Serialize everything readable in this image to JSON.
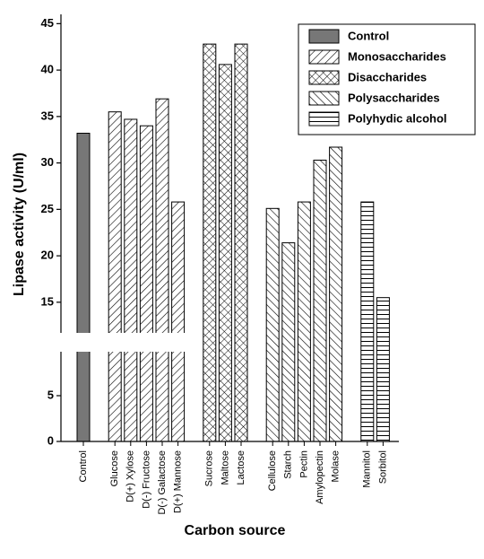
{
  "chart_data": {
    "type": "bar",
    "x_label": "Carbon source",
    "y_label": "Lipase activity (U/ml)",
    "categories": [
      "Control",
      null,
      "Glucose",
      "D(+) Xylose",
      "D(-) Fructose",
      "D(-) Galactose",
      "D(+) Mannose",
      null,
      "Sucrose",
      "Maltose",
      "Lactose",
      null,
      "Cellulose",
      "Starch",
      "Pectin",
      "Amylopectin",
      "Molase",
      null,
      "Mannitol",
      "Sorbitol"
    ],
    "series": [
      {
        "name": "Control",
        "color": "#777777",
        "pattern": "solid",
        "values": [
          33.2,
          null,
          null,
          null,
          null,
          null,
          null,
          null,
          null,
          null,
          null,
          null,
          null,
          null,
          null,
          null,
          null,
          null,
          null,
          null
        ]
      },
      {
        "name": "Monosaccharides",
        "color": "#000000",
        "pattern": "forward-diagonal",
        "values": [
          null,
          null,
          35.5,
          34.7,
          34.0,
          36.9,
          25.8,
          null,
          null,
          null,
          null,
          null,
          null,
          null,
          null,
          null,
          null,
          null,
          null,
          null
        ]
      },
      {
        "name": "Disaccharides",
        "color": "#000000",
        "pattern": "crosshatch",
        "values": [
          null,
          null,
          null,
          null,
          null,
          null,
          null,
          null,
          42.8,
          40.6,
          42.8,
          null,
          null,
          null,
          null,
          null,
          null,
          null,
          null,
          null
        ]
      },
      {
        "name": "Polysaccharides",
        "color": "#000000",
        "pattern": "backward-diagonal",
        "values": [
          null,
          null,
          null,
          null,
          null,
          null,
          null,
          null,
          null,
          null,
          null,
          null,
          25.1,
          21.4,
          25.8,
          30.3,
          31.7,
          null,
          null,
          null
        ]
      },
      {
        "name": "Polyhydic alcohol",
        "color": "#000000",
        "pattern": "horizontal",
        "values": [
          null,
          null,
          null,
          null,
          null,
          null,
          null,
          null,
          null,
          null,
          null,
          null,
          null,
          null,
          null,
          null,
          null,
          null,
          25.8,
          15.5
        ]
      }
    ],
    "ylim": [
      0,
      46
    ],
    "ybreak": [
      9.8,
      11.7
    ],
    "yticks": [
      0,
      5,
      15,
      20,
      25,
      30,
      35,
      40,
      45
    ],
    "legend": "upper right"
  }
}
